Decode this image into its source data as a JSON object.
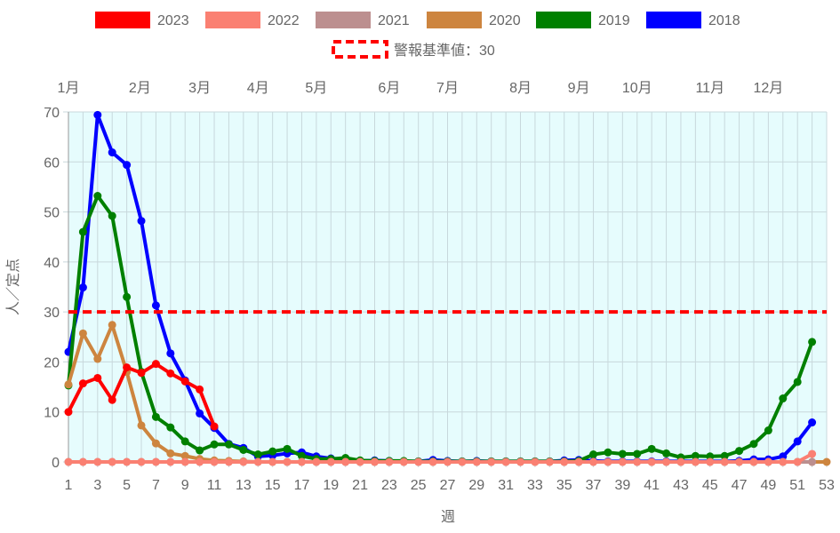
{
  "chart_data": {
    "type": "line",
    "xlabel": "週",
    "ylabel": "人／定点",
    "xlim": [
      1,
      53
    ],
    "ylim": [
      0,
      70
    ],
    "yticks": [
      0,
      10,
      20,
      30,
      40,
      50,
      60,
      70
    ],
    "xticks": [
      1,
      3,
      5,
      7,
      9,
      11,
      13,
      15,
      17,
      19,
      21,
      23,
      25,
      27,
      29,
      31,
      33,
      35,
      37,
      39,
      41,
      43,
      45,
      47,
      49,
      51,
      53
    ],
    "grid": true,
    "legend_position": "top",
    "month_axis": [
      {
        "label": "1月",
        "week": 1
      },
      {
        "label": "2月",
        "week": 5.9
      },
      {
        "label": "3月",
        "week": 10
      },
      {
        "label": "4月",
        "week": 14
      },
      {
        "label": "5月",
        "week": 18
      },
      {
        "label": "6月",
        "week": 23
      },
      {
        "label": "7月",
        "week": 27
      },
      {
        "label": "8月",
        "week": 32
      },
      {
        "label": "9月",
        "week": 36
      },
      {
        "label": "10月",
        "week": 40
      },
      {
        "label": "11月",
        "week": 45
      },
      {
        "label": "12月",
        "week": 49
      }
    ],
    "threshold": {
      "name": "警報基準値：30",
      "value": 30,
      "color": "#ff0000"
    },
    "background": "#e6fcfd",
    "series": [
      {
        "name": "2023",
        "color": "#ff0000",
        "values": [
          10,
          15.7,
          16.8,
          12.4,
          18.9,
          17.8,
          19.6,
          17.7,
          16.1,
          14.5,
          7.1
        ]
      },
      {
        "name": "2022",
        "color": "#fa8072",
        "values": [
          0,
          0,
          0,
          0,
          0,
          0,
          0,
          0,
          0,
          0,
          0,
          0,
          0,
          0,
          0,
          0,
          0,
          0,
          0,
          0,
          0,
          0,
          0,
          0,
          0,
          0,
          0,
          0,
          0,
          0,
          0,
          0,
          0,
          0,
          0,
          0,
          0,
          0,
          0,
          0,
          0,
          0,
          0,
          0,
          0,
          0,
          0,
          0,
          0,
          0,
          0,
          1.6
        ]
      },
      {
        "name": "2021",
        "color": "#bc8f8f",
        "values": [
          0,
          0,
          0,
          0,
          0,
          0,
          0,
          0,
          0,
          0,
          0,
          0,
          0,
          0,
          0,
          0,
          0,
          0,
          0,
          0,
          0,
          0,
          0,
          0,
          0,
          0,
          0,
          0,
          0,
          0,
          0,
          0,
          0,
          0,
          0,
          0,
          0,
          0,
          0,
          0,
          0,
          0,
          0,
          0,
          0,
          0,
          0,
          0,
          0,
          0,
          0,
          0
        ]
      },
      {
        "name": "2020",
        "color": "#cd853f",
        "values": [
          15.5,
          25.7,
          20.6,
          27.4,
          18,
          7.3,
          3.7,
          1.7,
          1.2,
          0.6,
          0.3,
          0.2,
          0.1,
          0,
          0,
          0,
          0,
          0,
          0,
          0,
          0,
          0,
          0,
          0,
          0,
          0,
          0,
          0,
          0,
          0,
          0,
          0,
          0,
          0,
          0,
          0,
          0,
          0,
          0,
          0,
          0,
          0,
          0,
          0,
          0,
          0,
          0,
          0,
          0,
          0,
          0,
          0,
          0
        ]
      },
      {
        "name": "2019",
        "color": "#008000",
        "values": [
          15.3,
          46,
          53.2,
          49.2,
          33,
          18,
          9,
          6.9,
          4.1,
          2.3,
          3.5,
          3.5,
          2.4,
          1.5,
          2.1,
          2.6,
          1.2,
          0.6,
          0.6,
          0.8,
          0.3,
          0.2,
          0.2,
          0.2,
          0.1,
          0.1,
          0.1,
          0.1,
          0.1,
          0.1,
          0.1,
          0.1,
          0.1,
          0.1,
          0.1,
          0.2,
          1.5,
          1.9,
          1.6,
          1.6,
          2.6,
          1.7,
          0.9,
          1.2,
          1.1,
          1.2,
          2.2,
          3.6,
          6.3,
          12.7,
          16,
          24
        ]
      },
      {
        "name": "2018",
        "color": "#0000ff",
        "values": [
          22,
          34.9,
          69.4,
          61.9,
          59.4,
          48.2,
          31.3,
          21.7,
          16.3,
          9.7,
          6.8,
          3.6,
          2.8,
          1.1,
          1.3,
          1.7,
          1.9,
          1.1,
          0.7,
          0.3,
          0.2,
          0.3,
          0.2,
          0.1,
          0.1,
          0.4,
          0.2,
          0.1,
          0.2,
          0.1,
          0.1,
          0.1,
          0.1,
          0.1,
          0.3,
          0.4,
          0.2,
          0.1,
          0.1,
          0.1,
          0.1,
          0.1,
          0.1,
          0.1,
          0.1,
          0.1,
          0.2,
          0.5,
          0.5,
          1.1,
          4.1,
          7.9
        ]
      }
    ]
  }
}
